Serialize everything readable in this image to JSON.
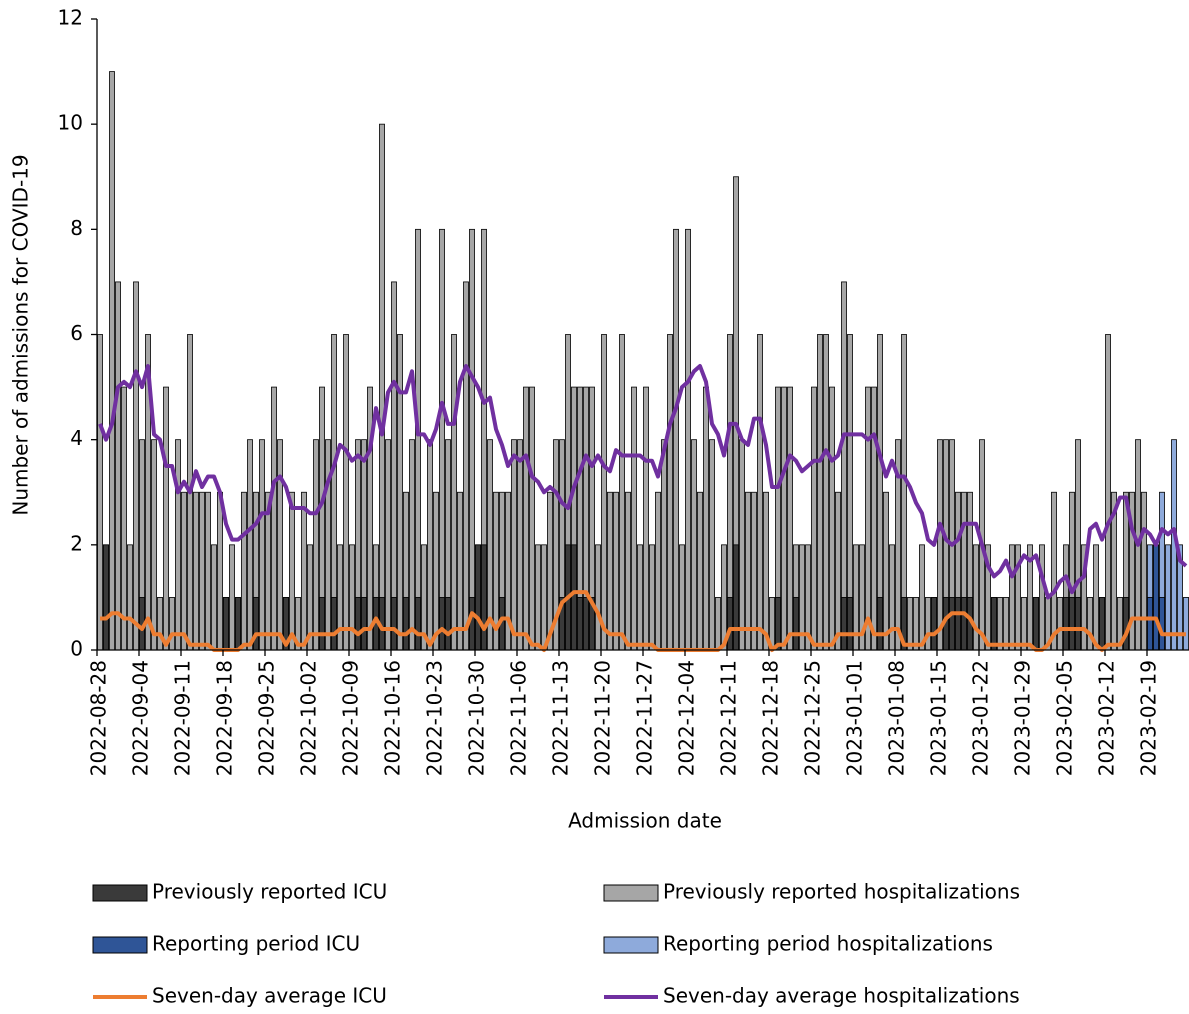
{
  "chart_data": {
    "type": "bar",
    "y_label": "Number of admissions for COVID-19",
    "x_label": "Admission date",
    "ylim": [
      0,
      12
    ],
    "yticks": [
      0,
      2,
      4,
      6,
      8,
      10,
      12
    ],
    "categories": [
      "2022-08-28",
      null,
      null,
      null,
      null,
      null,
      null,
      "2022-09-04",
      null,
      null,
      null,
      null,
      null,
      null,
      "2022-09-11",
      null,
      null,
      null,
      null,
      null,
      null,
      "2022-09-18",
      null,
      null,
      null,
      null,
      null,
      null,
      "2022-09-25",
      null,
      null,
      null,
      null,
      null,
      null,
      "2022-10-02",
      null,
      null,
      null,
      null,
      null,
      null,
      "2022-10-09",
      null,
      null,
      null,
      null,
      null,
      null,
      "2022-10-16",
      null,
      null,
      null,
      null,
      null,
      null,
      "2022-10-23",
      null,
      null,
      null,
      null,
      null,
      null,
      "2022-10-30",
      null,
      null,
      null,
      null,
      null,
      null,
      "2022-11-06",
      null,
      null,
      null,
      null,
      null,
      null,
      "2022-11-13",
      null,
      null,
      null,
      null,
      null,
      null,
      "2022-11-20",
      null,
      null,
      null,
      null,
      null,
      null,
      "2022-11-27",
      null,
      null,
      null,
      null,
      null,
      null,
      "2022-12-04",
      null,
      null,
      null,
      null,
      null,
      null,
      "2022-12-11",
      null,
      null,
      null,
      null,
      null,
      null,
      "2022-12-18",
      null,
      null,
      null,
      null,
      null,
      null,
      "2022-12-25",
      null,
      null,
      null,
      null,
      null,
      null,
      "2023-01-01",
      null,
      null,
      null,
      null,
      null,
      null,
      "2023-01-08",
      null,
      null,
      null,
      null,
      null,
      null,
      "2023-01-15",
      null,
      null,
      null,
      null,
      null,
      null,
      "2023-01-22",
      null,
      null,
      null,
      null,
      null,
      null,
      "2023-01-29",
      null,
      null,
      null,
      null,
      null,
      null,
      "2023-02-05",
      null,
      null,
      null,
      null,
      null,
      null,
      "2023-02-12",
      null,
      null,
      null,
      null,
      null,
      null,
      "2023-02-19",
      null,
      null,
      null,
      null,
      null,
      null
    ],
    "series": [
      {
        "name": "Previously reported ICU",
        "type": "bar",
        "color": "#3a3a3a",
        "values": [
          0,
          2,
          0,
          0,
          0,
          0,
          0,
          1,
          0,
          0,
          0,
          0,
          0,
          0,
          0,
          0,
          0,
          0,
          0,
          0,
          0,
          1,
          0,
          1,
          0,
          0,
          1,
          0,
          0,
          0,
          0,
          1,
          0,
          0,
          0,
          0,
          0,
          1,
          0,
          1,
          0,
          0,
          0,
          1,
          1,
          0,
          1,
          1,
          0,
          1,
          0,
          1,
          0,
          1,
          0,
          0,
          0,
          1,
          1,
          0,
          0,
          0,
          1,
          2,
          2,
          0,
          0,
          1,
          0,
          0,
          0,
          0,
          0,
          0,
          0,
          0,
          0,
          1,
          2,
          2,
          1,
          1,
          1,
          0,
          0,
          0,
          0,
          0,
          0,
          0,
          0,
          0,
          0,
          0,
          0,
          0,
          0,
          0,
          0,
          0,
          0,
          0,
          0,
          0,
          0,
          1,
          2,
          0,
          0,
          0,
          0,
          0,
          0,
          1,
          0,
          0,
          1,
          0,
          0,
          0,
          0,
          0,
          0,
          0,
          1,
          1,
          0,
          0,
          0,
          0,
          1,
          0,
          0,
          0,
          1,
          0,
          0,
          0,
          0,
          1,
          0,
          1,
          1,
          1,
          1,
          1,
          0,
          0,
          0,
          1,
          0,
          0,
          0,
          0,
          0,
          0,
          1,
          0,
          0,
          0,
          0,
          1,
          1,
          1,
          0,
          0,
          0,
          1,
          0,
          0,
          0,
          1,
          0,
          0,
          0,
          null,
          null,
          null,
          null,
          null,
          null,
          null
        ]
      },
      {
        "name": "Previously reported hospitalizations",
        "type": "bar",
        "color": "#a6a6a6",
        "values": [
          6,
          2,
          11,
          7,
          5,
          2,
          7,
          4,
          6,
          4,
          1,
          5,
          1,
          4,
          3,
          6,
          3,
          3,
          3,
          2,
          3,
          1,
          2,
          1,
          3,
          4,
          3,
          4,
          3,
          5,
          4,
          1,
          3,
          1,
          3,
          2,
          4,
          5,
          4,
          6,
          2,
          6,
          2,
          4,
          4,
          5,
          2,
          10,
          4,
          7,
          6,
          3,
          4,
          8,
          2,
          4,
          3,
          8,
          4,
          6,
          3,
          7,
          8,
          2,
          8,
          4,
          3,
          3,
          3,
          4,
          4,
          5,
          5,
          2,
          2,
          3,
          4,
          4,
          6,
          5,
          5,
          5,
          5,
          2,
          6,
          3,
          3,
          6,
          3,
          5,
          2,
          5,
          2,
          3,
          4,
          6,
          8,
          2,
          8,
          4,
          3,
          5,
          4,
          1,
          2,
          6,
          9,
          4,
          3,
          3,
          6,
          3,
          1,
          5,
          5,
          5,
          2,
          2,
          2,
          5,
          6,
          6,
          5,
          3,
          7,
          6,
          2,
          2,
          5,
          5,
          6,
          3,
          2,
          4,
          6,
          1,
          1,
          2,
          1,
          1,
          4,
          4,
          4,
          3,
          3,
          3,
          2,
          4,
          2,
          1,
          1,
          1,
          2,
          2,
          1,
          2,
          1,
          2,
          1,
          3,
          1,
          2,
          3,
          4,
          2,
          1,
          2,
          1,
          6,
          3,
          1,
          3,
          3,
          4,
          3,
          null,
          null,
          null,
          null,
          null,
          null,
          null
        ]
      },
      {
        "name": "Reporting period ICU",
        "type": "bar",
        "color": "#2f5597",
        "values": [
          null,
          null,
          null,
          null,
          null,
          null,
          null,
          null,
          null,
          null,
          null,
          null,
          null,
          null,
          null,
          null,
          null,
          null,
          null,
          null,
          null,
          null,
          null,
          null,
          null,
          null,
          null,
          null,
          null,
          null,
          null,
          null,
          null,
          null,
          null,
          null,
          null,
          null,
          null,
          null,
          null,
          null,
          null,
          null,
          null,
          null,
          null,
          null,
          null,
          null,
          null,
          null,
          null,
          null,
          null,
          null,
          null,
          null,
          null,
          null,
          null,
          null,
          null,
          null,
          null,
          null,
          null,
          null,
          null,
          null,
          null,
          null,
          null,
          null,
          null,
          null,
          null,
          null,
          null,
          null,
          null,
          null,
          null,
          null,
          null,
          null,
          null,
          null,
          null,
          null,
          null,
          null,
          null,
          null,
          null,
          null,
          null,
          null,
          null,
          null,
          null,
          null,
          null,
          null,
          null,
          null,
          null,
          null,
          null,
          null,
          null,
          null,
          null,
          null,
          null,
          null,
          null,
          null,
          null,
          null,
          null,
          null,
          null,
          null,
          null,
          null,
          null,
          null,
          null,
          null,
          null,
          null,
          null,
          null,
          null,
          null,
          null,
          null,
          null,
          null,
          null,
          null,
          null,
          null,
          null,
          null,
          null,
          null,
          null,
          null,
          null,
          null,
          null,
          null,
          null,
          null,
          null,
          null,
          null,
          null,
          null,
          null,
          null,
          null,
          null,
          null,
          null,
          null,
          null,
          null,
          null,
          null,
          null,
          null,
          null,
          1,
          2,
          1,
          0,
          0,
          0,
          0
        ]
      },
      {
        "name": "Reporting period hospitalizations",
        "type": "bar",
        "color": "#8eaadb",
        "values": [
          null,
          null,
          null,
          null,
          null,
          null,
          null,
          null,
          null,
          null,
          null,
          null,
          null,
          null,
          null,
          null,
          null,
          null,
          null,
          null,
          null,
          null,
          null,
          null,
          null,
          null,
          null,
          null,
          null,
          null,
          null,
          null,
          null,
          null,
          null,
          null,
          null,
          null,
          null,
          null,
          null,
          null,
          null,
          null,
          null,
          null,
          null,
          null,
          null,
          null,
          null,
          null,
          null,
          null,
          null,
          null,
          null,
          null,
          null,
          null,
          null,
          null,
          null,
          null,
          null,
          null,
          null,
          null,
          null,
          null,
          null,
          null,
          null,
          null,
          null,
          null,
          null,
          null,
          null,
          null,
          null,
          null,
          null,
          null,
          null,
          null,
          null,
          null,
          null,
          null,
          null,
          null,
          null,
          null,
          null,
          null,
          null,
          null,
          null,
          null,
          null,
          null,
          null,
          null,
          null,
          null,
          null,
          null,
          null,
          null,
          null,
          null,
          null,
          null,
          null,
          null,
          null,
          null,
          null,
          null,
          null,
          null,
          null,
          null,
          null,
          null,
          null,
          null,
          null,
          null,
          null,
          null,
          null,
          null,
          null,
          null,
          null,
          null,
          null,
          null,
          null,
          null,
          null,
          null,
          null,
          null,
          null,
          null,
          null,
          null,
          null,
          null,
          null,
          null,
          null,
          null,
          null,
          null,
          null,
          null,
          null,
          null,
          null,
          null,
          null,
          null,
          null,
          null,
          null,
          null,
          null,
          null,
          null,
          null,
          null,
          2,
          2,
          3,
          2,
          4,
          2,
          1
        ]
      },
      {
        "name": "Seven-day average ICU",
        "type": "line",
        "color": "#ed7d31",
        "values": [
          0.6,
          0.6,
          0.7,
          0.7,
          0.6,
          0.6,
          0.5,
          0.4,
          0.6,
          0.3,
          0.3,
          0.1,
          0.3,
          0.3,
          0.3,
          0.1,
          0.1,
          0.1,
          0.1,
          0,
          0,
          0,
          0,
          0,
          0.1,
          0.1,
          0.3,
          0.3,
          0.3,
          0.3,
          0.3,
          0.1,
          0.3,
          0.1,
          0.1,
          0.3,
          0.3,
          0.3,
          0.3,
          0.3,
          0.4,
          0.4,
          0.4,
          0.3,
          0.4,
          0.4,
          0.6,
          0.4,
          0.4,
          0.4,
          0.3,
          0.3,
          0.4,
          0.3,
          0.3,
          0.1,
          0.3,
          0.4,
          0.3,
          0.4,
          0.4,
          0.4,
          0.7,
          0.6,
          0.4,
          0.6,
          0.4,
          0.6,
          0.6,
          0.3,
          0.3,
          0.3,
          0.1,
          0.1,
          0,
          0.3,
          0.6,
          0.9,
          1.0,
          1.1,
          1.1,
          1.1,
          0.9,
          0.7,
          0.4,
          0.3,
          0.3,
          0.3,
          0.1,
          0.1,
          0.1,
          0.1,
          0.1,
          0,
          0,
          0,
          0,
          0,
          0,
          0,
          0,
          0,
          0,
          0,
          0.1,
          0.4,
          0.4,
          0.4,
          0.4,
          0.4,
          0.4,
          0.3,
          0,
          0.1,
          0.1,
          0.3,
          0.3,
          0.3,
          0.3,
          0.1,
          0.1,
          0.1,
          0.1,
          0.3,
          0.3,
          0.3,
          0.3,
          0.3,
          0.6,
          0.3,
          0.3,
          0.3,
          0.4,
          0.4,
          0.1,
          0.1,
          0.1,
          0.1,
          0.3,
          0.3,
          0.4,
          0.6,
          0.7,
          0.7,
          0.7,
          0.6,
          0.4,
          0.3,
          0.1,
          0.1,
          0.1,
          0.1,
          0.1,
          0.1,
          0.1,
          0.1,
          0,
          0,
          0.1,
          0.3,
          0.4,
          0.4,
          0.4,
          0.4,
          0.4,
          0.3,
          0.1,
          0,
          0.1,
          0.1,
          0.1,
          0.3,
          0.6,
          0.6,
          0.6,
          0.6,
          0.6,
          0.3,
          0.3,
          0.3,
          0.3,
          0.3
        ]
      },
      {
        "name": "Seven-day average hospitalizations",
        "type": "line",
        "color": "#7030a0",
        "values": [
          4.3,
          4.0,
          4.3,
          5.0,
          5.1,
          5.0,
          5.3,
          5.0,
          5.4,
          4.1,
          4.0,
          3.5,
          3.5,
          3.0,
          3.2,
          3.0,
          3.4,
          3.1,
          3.3,
          3.3,
          3.0,
          2.4,
          2.1,
          2.1,
          2.2,
          2.3,
          2.4,
          2.6,
          2.6,
          3.2,
          3.3,
          3.1,
          2.7,
          2.7,
          2.7,
          2.6,
          2.6,
          2.8,
          3.2,
          3.5,
          3.9,
          3.8,
          3.6,
          3.7,
          3.6,
          3.8,
          4.6,
          4.1,
          4.9,
          5.1,
          4.9,
          4.9,
          5.3,
          4.1,
          4.1,
          3.9,
          4.2,
          4.7,
          4.3,
          4.3,
          5.1,
          5.4,
          5.2,
          5.0,
          4.7,
          4.8,
          4.2,
          3.9,
          3.5,
          3.7,
          3.6,
          3.7,
          3.3,
          3.2,
          3.0,
          3.1,
          3.0,
          2.8,
          2.7,
          3.1,
          3.4,
          3.7,
          3.5,
          3.7,
          3.5,
          3.4,
          3.8,
          3.7,
          3.7,
          3.7,
          3.7,
          3.6,
          3.6,
          3.3,
          3.8,
          4.3,
          4.6,
          5.0,
          5.1,
          5.3,
          5.4,
          5.1,
          4.3,
          4.1,
          3.7,
          4.3,
          4.3,
          4.0,
          3.9,
          4.4,
          4.4,
          3.9,
          3.1,
          3.1,
          3.4,
          3.7,
          3.6,
          3.4,
          3.5,
          3.6,
          3.6,
          3.8,
          3.6,
          3.7,
          4.1,
          4.1,
          4.1,
          4.1,
          4.0,
          4.1,
          3.7,
          3.3,
          3.6,
          3.3,
          3.3,
          3.1,
          2.8,
          2.6,
          2.1,
          2.0,
          2.4,
          2.1,
          2.0,
          2.1,
          2.4,
          2.4,
          2.4,
          2.0,
          1.6,
          1.4,
          1.5,
          1.7,
          1.4,
          1.6,
          1.8,
          1.7,
          1.8,
          1.4,
          1.0,
          1.1,
          1.3,
          1.4,
          1.1,
          1.3,
          1.4,
          2.3,
          2.4,
          2.1,
          2.4,
          2.6,
          2.9,
          2.9,
          2.3,
          2.0,
          2.3,
          2.2,
          2.0,
          2.3,
          2.2,
          2.3,
          1.7,
          1.6
        ]
      }
    ]
  }
}
